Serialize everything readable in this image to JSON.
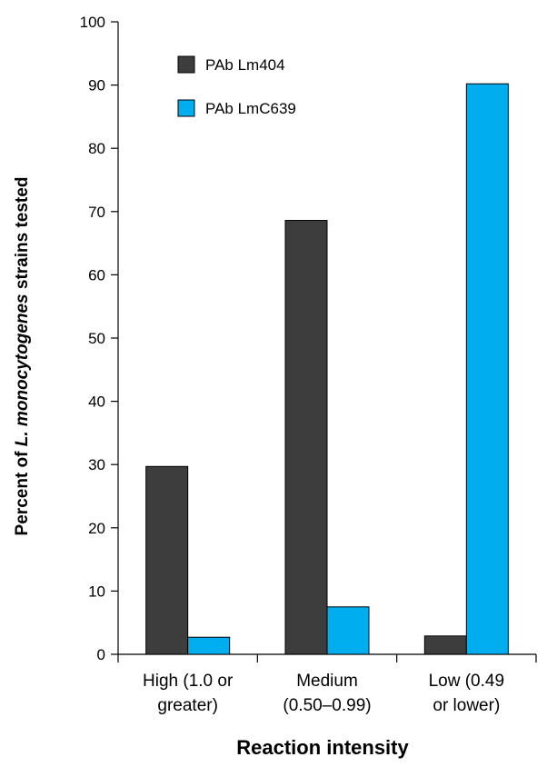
{
  "chart_data": {
    "type": "bar",
    "title": "",
    "xlabel": "Reaction intensity",
    "ylabel_parts": [
      "Percent of ",
      "L. monocytogenes",
      " strains tested"
    ],
    "ylim": [
      0,
      100
    ],
    "yticks": [
      0,
      10,
      20,
      30,
      40,
      50,
      60,
      70,
      80,
      90,
      100
    ],
    "grid": false,
    "legend_position": "top-left",
    "categories": [
      [
        "High (1.0 or",
        "greater)"
      ],
      [
        "Medium",
        "(0.50–0.99)"
      ],
      [
        "Low (0.49",
        "or lower)"
      ]
    ],
    "series": [
      {
        "name": "PAb Lm404",
        "color": "#3d3d3d",
        "values": [
          29.7,
          68.6,
          2.9
        ]
      },
      {
        "name": "PAb LmC639",
        "color": "#00aeef",
        "values": [
          2.7,
          7.5,
          90.2
        ]
      }
    ]
  }
}
